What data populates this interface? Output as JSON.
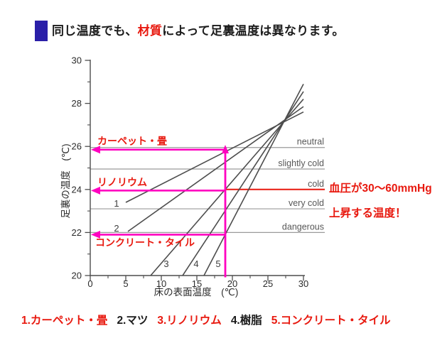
{
  "colors": {
    "accent_red": "#e8190f",
    "magenta": "#ff00c0",
    "bullet_blue": "#2a1fa8",
    "line_gray": "#4d4d4d",
    "guide_gray": "#9a9a9a",
    "text_dark": "#1c1c1c"
  },
  "title": {
    "part1": "同じ温度でも、",
    "highlight": "材質",
    "part2": "によって足裏温度は異なります。"
  },
  "chart_data": {
    "type": "line",
    "xlabel": "床の表面温度",
    "xlabel_unit": "(℃)",
    "ylabel": "足裏の温度",
    "ylabel_unit": "(℃)",
    "xlim": [
      0,
      30
    ],
    "ylim": [
      20,
      30
    ],
    "xticks": [
      0,
      5,
      10,
      15,
      20,
      25,
      30
    ],
    "yticks": [
      20,
      22,
      24,
      26,
      28,
      30
    ],
    "x_minor_ticks": [
      2.5,
      7.5,
      12.5,
      17.5,
      22.5,
      27.5
    ],
    "y_minor_ticks": [
      21,
      23,
      25,
      27,
      29
    ],
    "series": [
      {
        "num_label": "1",
        "name": "カーペット・畳",
        "points": [
          [
            5.0,
            23.4
          ],
          [
            30,
            27.6
          ]
        ],
        "num_label_at": [
          3.7,
          23.35
        ]
      },
      {
        "num_label": "2",
        "name": "マツ",
        "points": [
          [
            5.3,
            22.05
          ],
          [
            30,
            27.85
          ]
        ],
        "num_label_at": [
          3.7,
          22.2
        ]
      },
      {
        "num_label": "3",
        "name": "リノリウム",
        "points": [
          [
            8.5,
            20
          ],
          [
            30,
            28.2
          ]
        ],
        "num_label_at": [
          10.7,
          20.55
        ]
      },
      {
        "num_label": "4",
        "name": "樹脂",
        "points": [
          [
            13,
            20
          ],
          [
            30,
            28.55
          ]
        ],
        "num_label_at": [
          14.9,
          20.55
        ]
      },
      {
        "num_label": "5",
        "name": "コンクリート・タイル",
        "points": [
          [
            16,
            20
          ],
          [
            30,
            28.9
          ]
        ],
        "num_label_at": [
          18.0,
          20.55
        ]
      }
    ],
    "comfort_levels": [
      {
        "label": "neutral",
        "y": 25.95,
        "style": "gray"
      },
      {
        "label": "slightly cold",
        "y": 24.95,
        "style": "gray"
      },
      {
        "label": "cold",
        "y": 24.0,
        "style": "red"
      },
      {
        "label": "very cold",
        "y": 23.1,
        "style": "gray"
      },
      {
        "label": "dangerous",
        "y": 22.0,
        "style": "gray"
      }
    ],
    "annotations": {
      "vline_x": 19,
      "arrows": [
        {
          "label": "カーペット・畳",
          "y": 25.85,
          "label_side": "above"
        },
        {
          "label": "リノリウム",
          "y": 23.95,
          "label_side": "above"
        },
        {
          "label": "コンクリート・タイル",
          "y": 21.9,
          "label_side": "below"
        }
      ],
      "note_line1": "血圧が30〜60mmHg",
      "note_line2": "上昇する温度！"
    }
  },
  "legend": {
    "items": [
      {
        "text": "1.カーペット・畳",
        "color": "red"
      },
      {
        "text": "2.マツ",
        "color": "black"
      },
      {
        "text": "3.リノリウム",
        "color": "red"
      },
      {
        "text": "4.樹脂",
        "color": "black"
      },
      {
        "text": "5.コンクリート・タイル",
        "color": "red"
      }
    ]
  }
}
